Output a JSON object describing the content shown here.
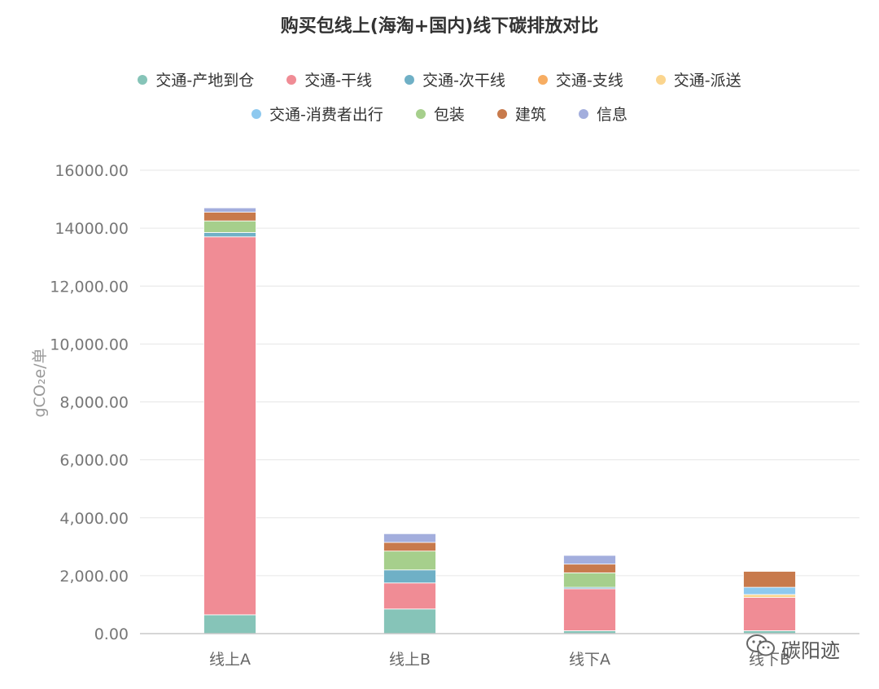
{
  "chart_data": {
    "type": "bar",
    "stacked": true,
    "title": "购买包线上(海淘+国内)线下碳排放对比",
    "ylabel": "gCO₂e/单",
    "xlabel": "",
    "ylim": [
      0,
      16000
    ],
    "grid": true,
    "legend_position": "top",
    "categories": [
      "线上A",
      "线上B",
      "线下A",
      "线下B"
    ],
    "y_ticks": [
      "0.00",
      "2,000.00",
      "4,000.00",
      "6,000.00",
      "8,000.00",
      "10,000.00",
      "12,000.00",
      "14000.00",
      "16000.00"
    ],
    "series": [
      {
        "name": "交通-产地到仓",
        "color": "#86c4b8",
        "values": [
          650,
          850,
          100,
          100
        ]
      },
      {
        "name": "交通-干线",
        "color": "#f08c95",
        "values": [
          13050,
          900,
          1450,
          1150
        ]
      },
      {
        "name": "交通-次干线",
        "color": "#6fb0c6",
        "values": [
          150,
          450,
          50,
          0
        ]
      },
      {
        "name": "交通-支线",
        "color": "#f7ad62",
        "values": [
          0,
          0,
          0,
          0
        ]
      },
      {
        "name": "交通-派送",
        "color": "#fbd58e",
        "values": [
          0,
          0,
          0,
          100
        ]
      },
      {
        "name": "交通-消费者出行",
        "color": "#8ec9ef",
        "values": [
          0,
          0,
          0,
          250
        ]
      },
      {
        "name": "包装",
        "color": "#a6cf8c",
        "values": [
          400,
          650,
          500,
          0
        ]
      },
      {
        "name": "建筑",
        "color": "#c87a4c",
        "values": [
          300,
          300,
          300,
          550
        ]
      },
      {
        "name": "信息",
        "color": "#a3aedd",
        "values": [
          150,
          300,
          300,
          0
        ]
      }
    ]
  },
  "watermark": {
    "text": "碳阳迹",
    "icon": "wechat-icon"
  }
}
